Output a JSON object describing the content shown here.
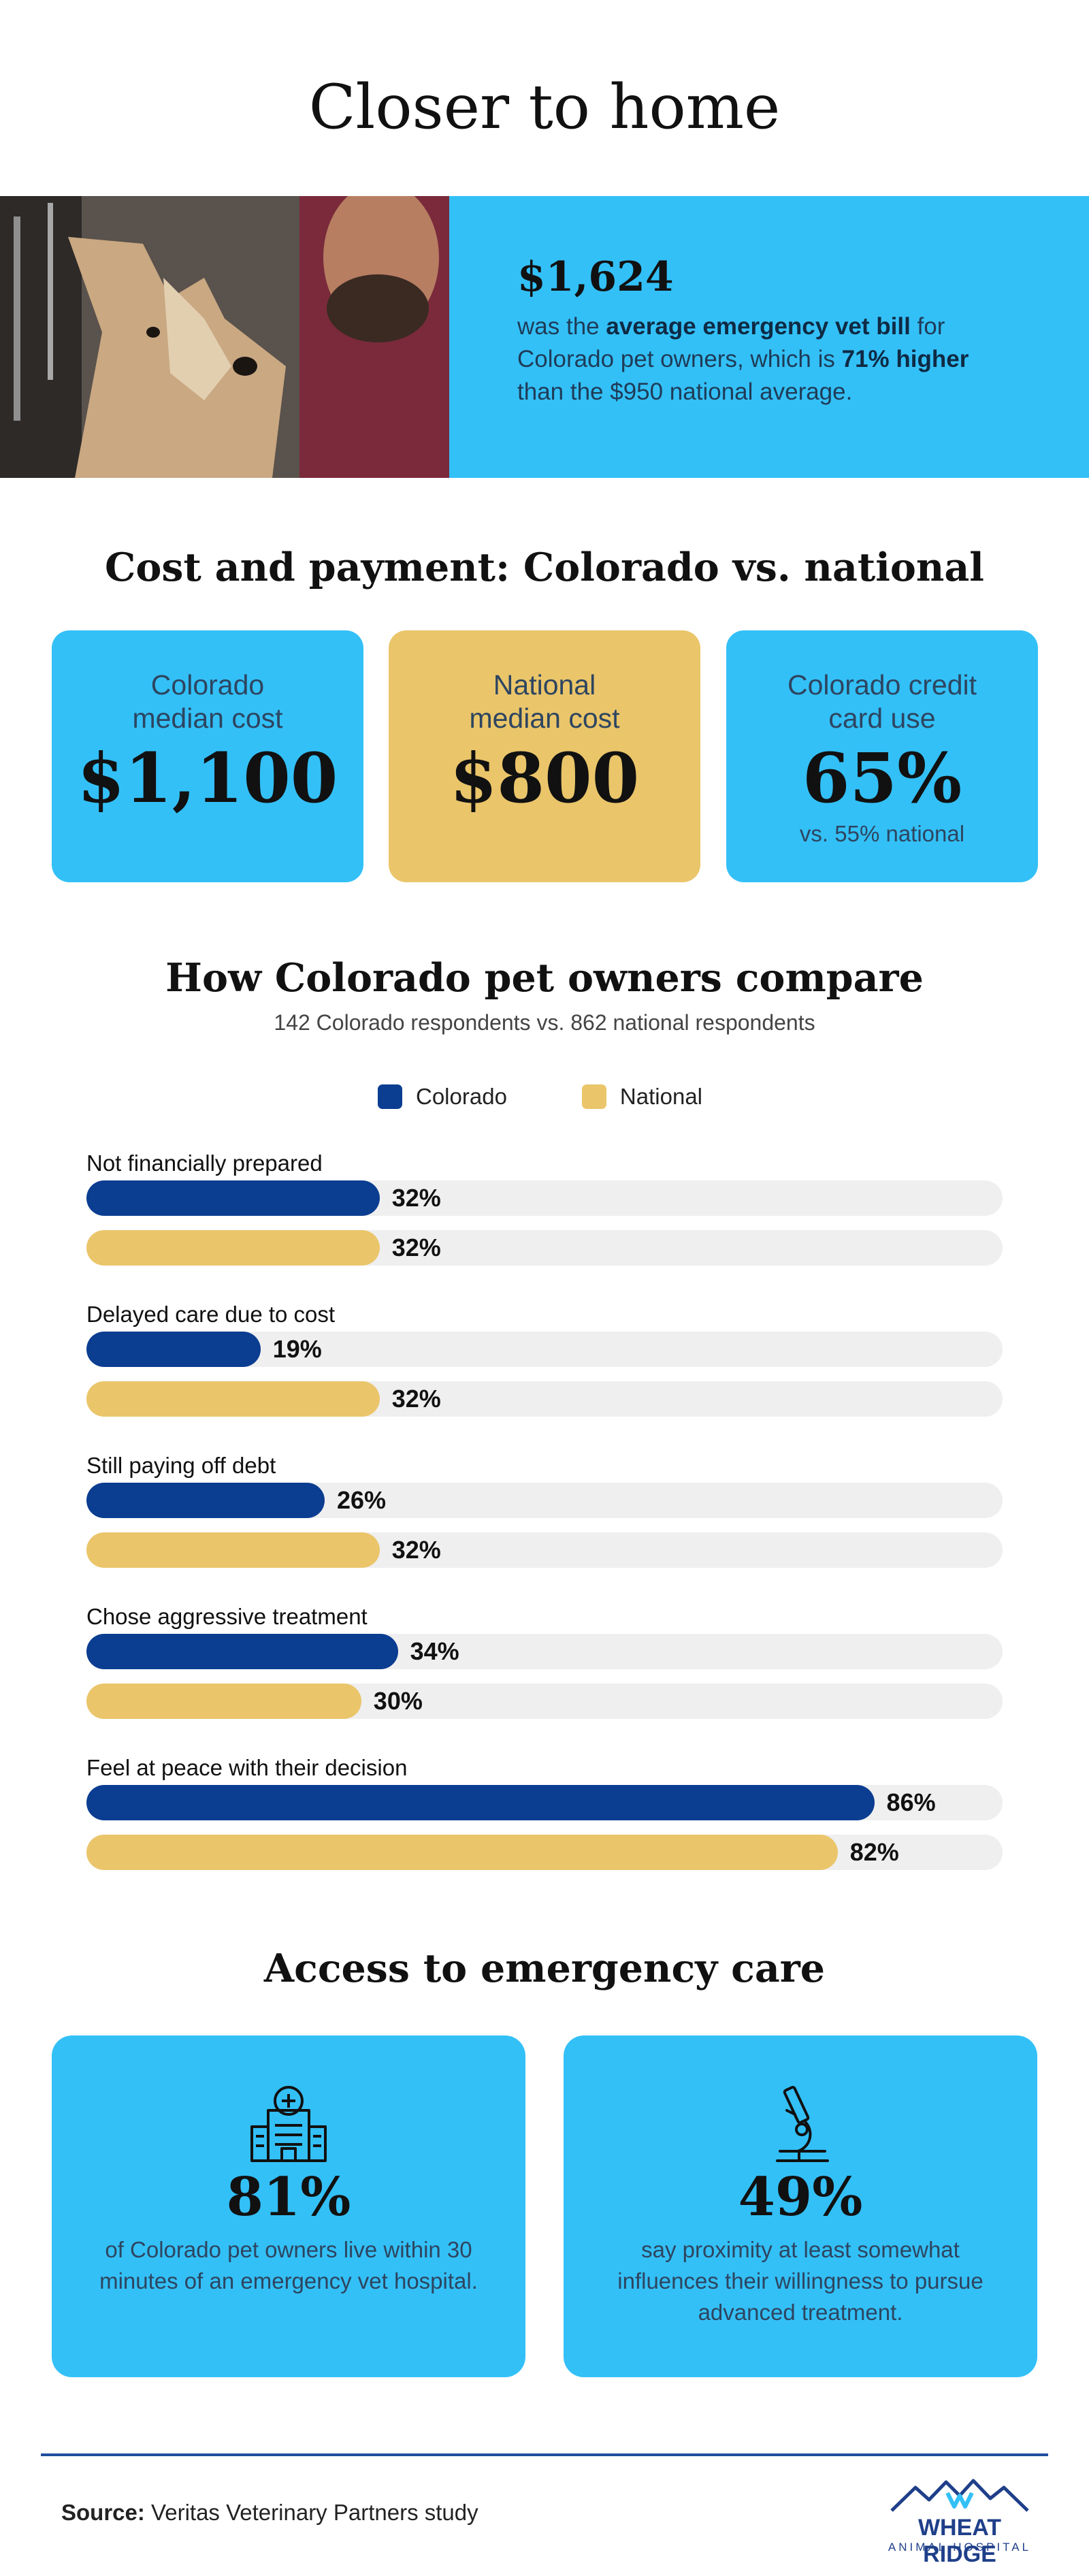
{
  "title": "Closer to home",
  "hero": {
    "amount": "$1,624",
    "text_pre": "was the ",
    "text_bold1": "average emergency vet bill",
    "text_mid": " for Colorado pet owners, which is ",
    "text_bold2": "71% higher",
    "text_post": " than the $950 national average."
  },
  "cost_section": {
    "heading": "Cost and payment: Colorado vs. national",
    "cards": [
      {
        "label_line1": "Colorado",
        "label_line2": "median cost",
        "value": "$1,100",
        "note": ""
      },
      {
        "label_line1": "National",
        "label_line2": "median cost",
        "value": "$800",
        "note": ""
      },
      {
        "label_line1": "Colorado credit",
        "label_line2": "card use",
        "value": "65%",
        "note": "vs. 55% national"
      }
    ]
  },
  "compare_section": {
    "heading": "How Colorado pet owners compare",
    "subtitle": "142 Colorado respondents vs. 862 national respondents"
  },
  "colors": {
    "colorado": "#0b3d91",
    "national": "#eac56a",
    "accent": "#33c0f7",
    "track": "#efefef"
  },
  "chart_data": {
    "type": "bar",
    "orientation": "horizontal",
    "categories": [
      "Not financially prepared",
      "Delayed care due to cost",
      "Still paying off debt",
      "Chose aggressive treatment",
      "Feel at peace with their decision"
    ],
    "series": [
      {
        "name": "Colorado",
        "values": [
          32,
          19,
          26,
          34,
          86
        ],
        "color": "#0b3d91"
      },
      {
        "name": "National",
        "values": [
          32,
          32,
          32,
          30,
          82
        ],
        "color": "#eac56a"
      }
    ],
    "value_suffix": "%",
    "xlim": [
      0,
      100
    ],
    "legend_position": "top-center",
    "grid": false
  },
  "access_section": {
    "heading": "Access to emergency care",
    "cards": [
      {
        "icon": "hospital-icon",
        "value": "81%",
        "text": "of Colorado pet owners live within 30 minutes of an emergency vet hospital."
      },
      {
        "icon": "microscope-icon",
        "value": "49%",
        "text": "say proximity at least somewhat influences their willingness to pursue advanced treatment."
      }
    ]
  },
  "footer": {
    "source_label": "Source:",
    "source_text": " Veritas Veterinary Partners study",
    "logo_name": "WHEAT RIDGE",
    "logo_sub": "ANIMAL HOSPITAL"
  }
}
